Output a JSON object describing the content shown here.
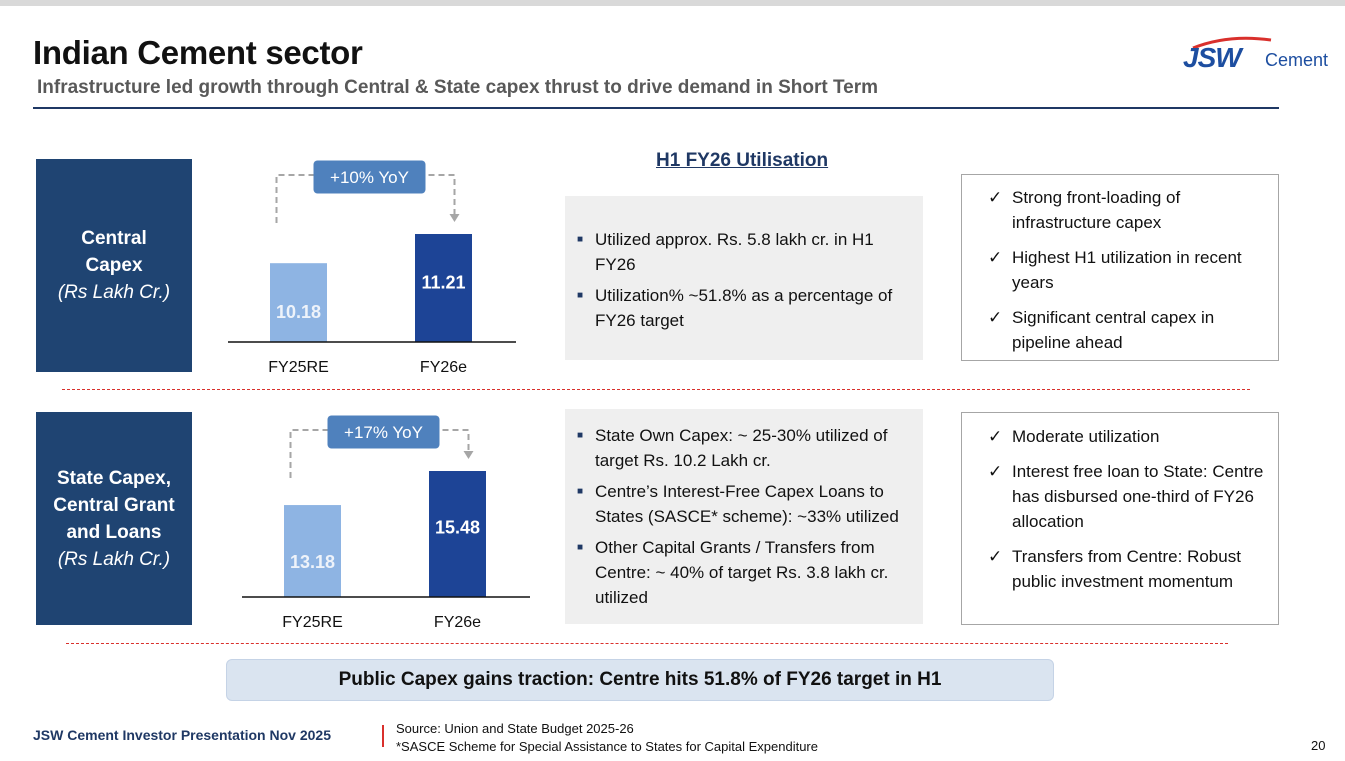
{
  "header": {
    "title": "Indian Cement sector",
    "subtitle": "Infrastructure led growth through Central & State capex thrust to drive demand in Short Term",
    "logo_mark": "JSW",
    "logo_word": "Cement"
  },
  "rows": [
    {
      "label_lines": [
        "Central",
        "Capex"
      ],
      "unit": "(Rs Lakh Cr.)"
    },
    {
      "label_lines": [
        "State Capex,",
        "Central Grant",
        "and Loans"
      ],
      "unit": "(Rs Lakh Cr.)"
    }
  ],
  "chart_data": [
    {
      "type": "bar",
      "categories": [
        "FY25RE",
        "FY26e"
      ],
      "values": [
        10.18,
        11.21
      ],
      "value_labels": [
        "10.18",
        "11.21"
      ],
      "growth_label": "+10% YoY",
      "colors": [
        "#8eb4e3",
        "#1d4496"
      ]
    },
    {
      "type": "bar",
      "categories": [
        "FY25RE",
        "FY26e"
      ],
      "values": [
        13.18,
        15.48
      ],
      "value_labels": [
        "13.18",
        "15.48"
      ],
      "growth_label": "+17% YoY",
      "colors": [
        "#8eb4e3",
        "#1d4496"
      ]
    }
  ],
  "utilisation": {
    "title": "H1 FY26 Utilisation",
    "central_bullets": [
      "Utilized approx. Rs. 5.8 lakh cr. in H1 FY26",
      "Utilization% ~51.8% as a percentage of FY26 target"
    ],
    "state_bullets": [
      "State Own Capex: ~ 25-30% utilized of target Rs. 10.2 Lakh cr.",
      "Centre’s Interest-Free Capex Loans to States (SASCE* scheme): ~33% utilized",
      "Other Capital Grants / Transfers from Centre: ~ 40% of target Rs. 3.8 lakh cr. utilized"
    ]
  },
  "highlights": {
    "central": [
      "Strong front-loading of infrastructure capex",
      "Highest H1 utilization in recent years",
      "Significant central capex in pipeline ahead"
    ],
    "state": [
      "Moderate utilization",
      "Interest free loan to State: Centre has disbursed one-third of FY26 allocation",
      "Transfers from Centre: Robust public investment momentum"
    ]
  },
  "banner": "Public Capex gains traction: Centre hits 51.8% of FY26 target in H1",
  "footer": {
    "left": "JSW Cement Investor Presentation Nov 2025",
    "source_line1": "Source: Union and State Budget 2025-26",
    "source_line2": "*SASCE Scheme for Special Assistance to States for Capital Expenditure",
    "page": "20"
  }
}
